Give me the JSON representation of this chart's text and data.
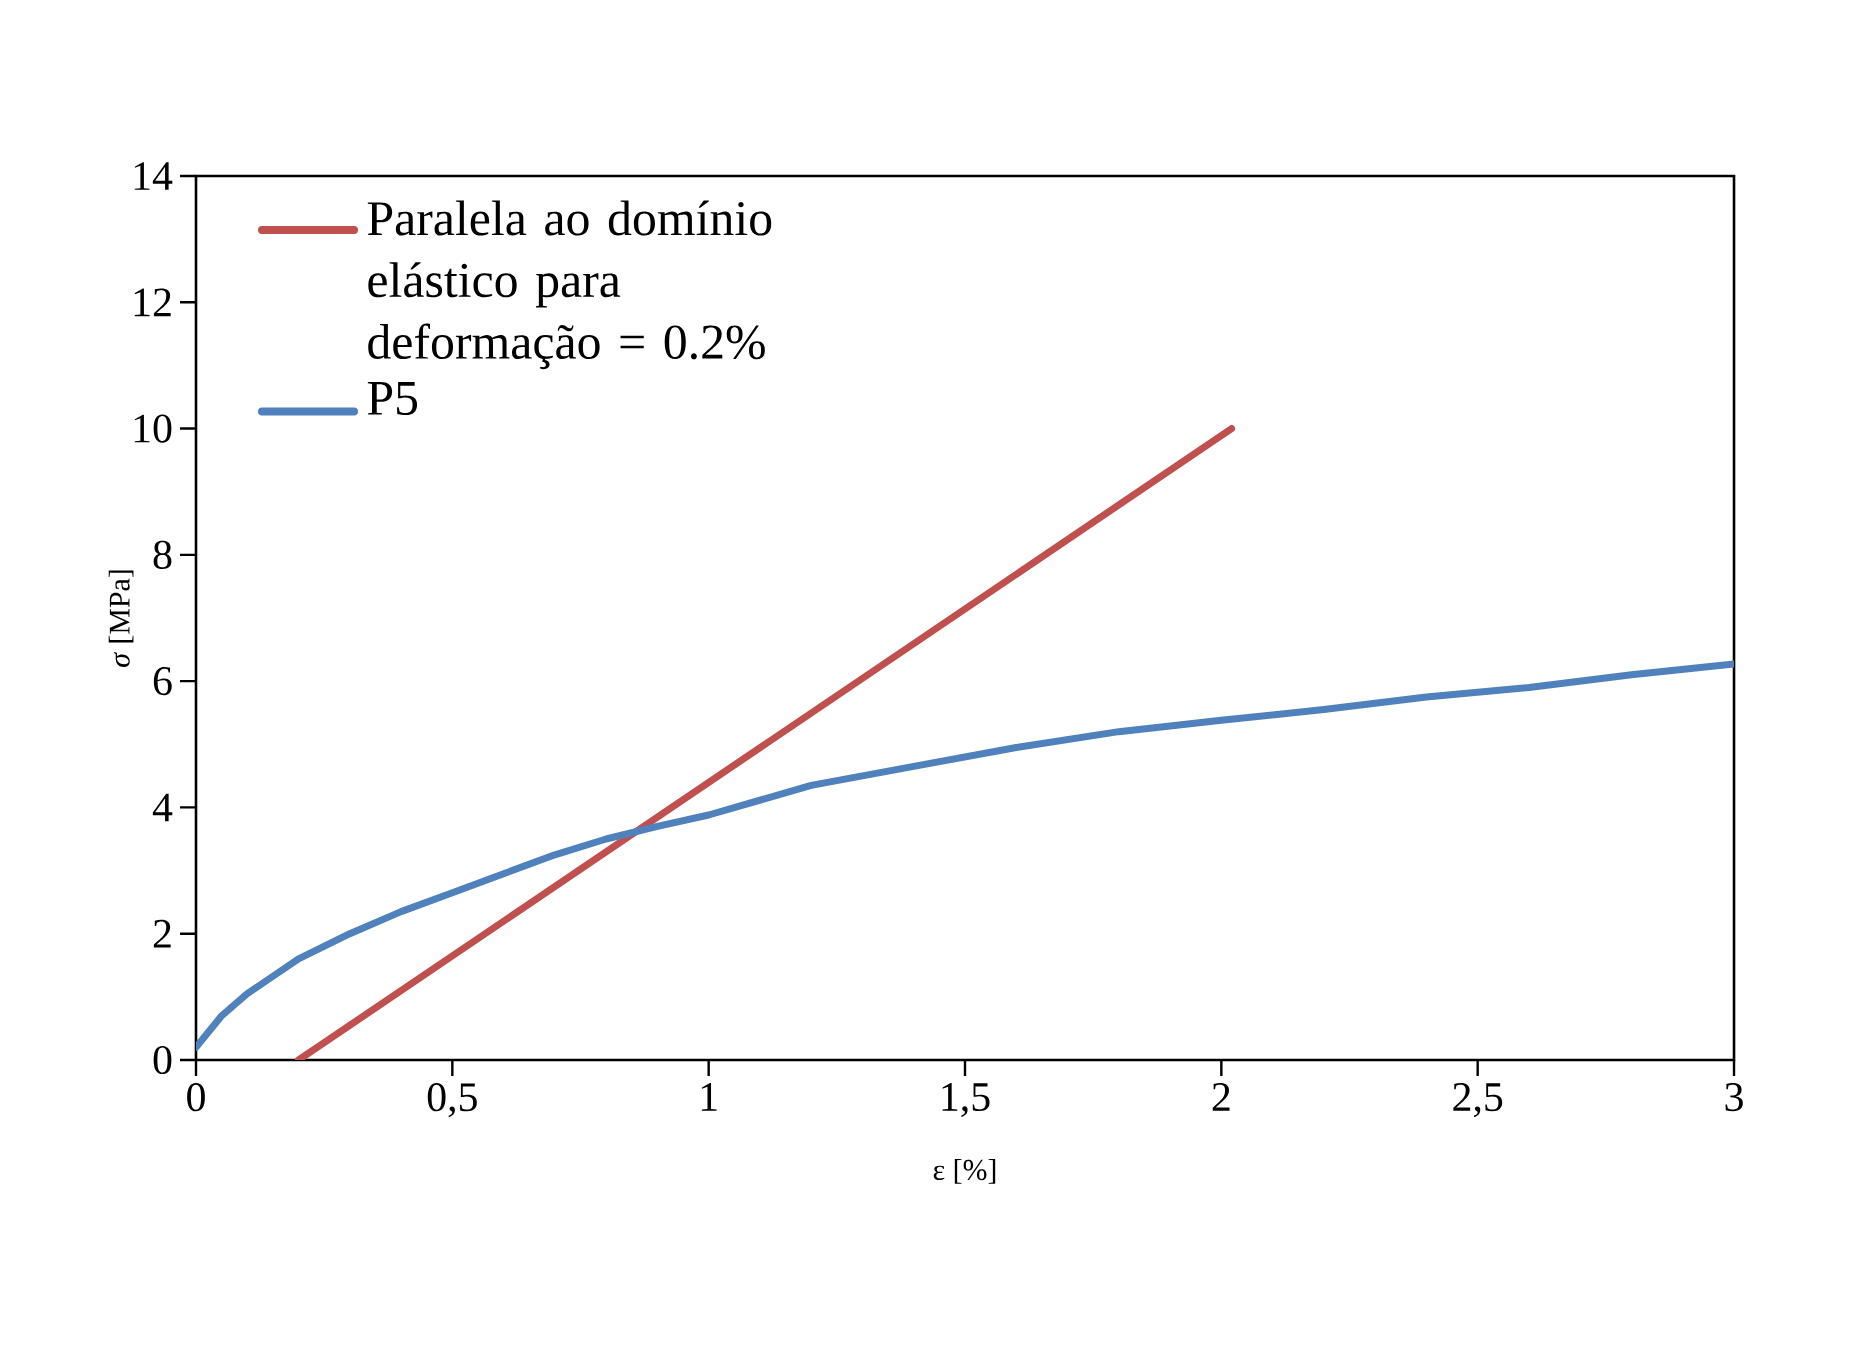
{
  "chart_data": {
    "type": "line",
    "xlabel": "ε [%]",
    "ylabel": "*σ* [MPa]",
    "xlim": [
      0,
      3
    ],
    "ylim": [
      0,
      14
    ],
    "xticks": [
      0,
      {
        "value": 0.5,
        "label": "0,5"
      },
      1,
      {
        "value": 1.5,
        "label": "1,5"
      },
      2,
      {
        "value": 2.5,
        "label": "2,5"
      },
      3
    ],
    "yticks": [
      0,
      2,
      4,
      6,
      8,
      10,
      12,
      14
    ],
    "grid": false,
    "legend": "top left",
    "marker": "none",
    "line_style": "solid",
    "series": [
      {
        "name": "Paralela ao domínio elástico para deformação = 0.2%",
        "color": "#c0504d",
        "x": [
          0.2,
          2.02
        ],
        "values": [
          0,
          10
        ]
      },
      {
        "name": "P5",
        "color": "#4f81bd",
        "x": [
          0,
          0.05,
          0.1,
          0.2,
          0.3,
          0.4,
          0.5,
          0.6,
          0.7,
          0.8,
          0.9,
          1.0,
          1.2,
          1.4,
          1.6,
          1.8,
          2.0,
          2.2,
          2.4,
          2.6,
          2.8,
          3.0
        ],
        "values": [
          0.2,
          0.7,
          1.05,
          1.6,
          2.0,
          2.35,
          2.65,
          2.95,
          3.25,
          3.5,
          3.7,
          3.88,
          4.35,
          4.65,
          4.95,
          5.2,
          5.38,
          5.55,
          5.75,
          5.9,
          6.1,
          6.27
        ]
      }
    ]
  }
}
